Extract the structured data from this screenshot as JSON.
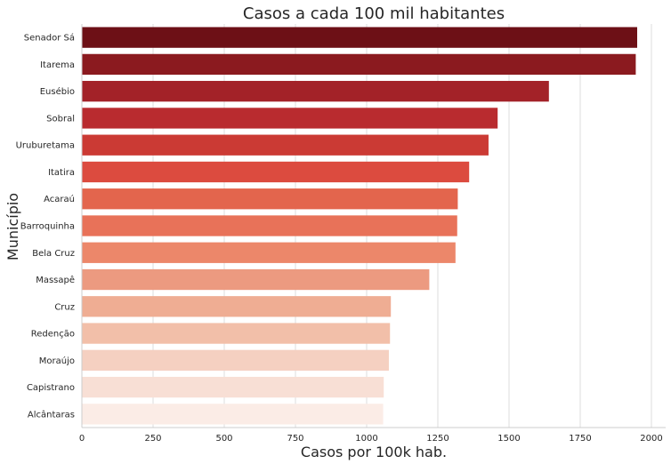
{
  "chart_data": {
    "type": "bar",
    "orientation": "horizontal",
    "title": "Casos a cada 100 mil habitantes",
    "xlabel": "Casos por 100k hab.",
    "ylabel": "Município",
    "xlim": [
      0,
      2050
    ],
    "x_ticks": [
      0,
      250,
      500,
      750,
      1000,
      1250,
      1500,
      1750,
      2000
    ],
    "grid": "vertical",
    "categories": [
      "Senador Sá",
      "Itarema",
      "Eusébio",
      "Sobral",
      "Uruburetama",
      "Itatira",
      "Acaraú",
      "Barroquinha",
      "Bela Cruz",
      "Massapê",
      "Cruz",
      "Redenção",
      "Moraújo",
      "Capistrano",
      "Alcântaras"
    ],
    "values": [
      1950,
      1945,
      1640,
      1460,
      1428,
      1360,
      1320,
      1318,
      1312,
      1220,
      1085,
      1082,
      1078,
      1060,
      1058
    ],
    "colors": [
      "#6d1016",
      "#8b1a1f",
      "#a32228",
      "#b92b2f",
      "#cb3a34",
      "#dc4b3f",
      "#e3654d",
      "#e87259",
      "#ec876a",
      "#ec9a80",
      "#efad93",
      "#f2bfa9",
      "#f5d0c1",
      "#f8dfd5",
      "#fbece6"
    ]
  }
}
